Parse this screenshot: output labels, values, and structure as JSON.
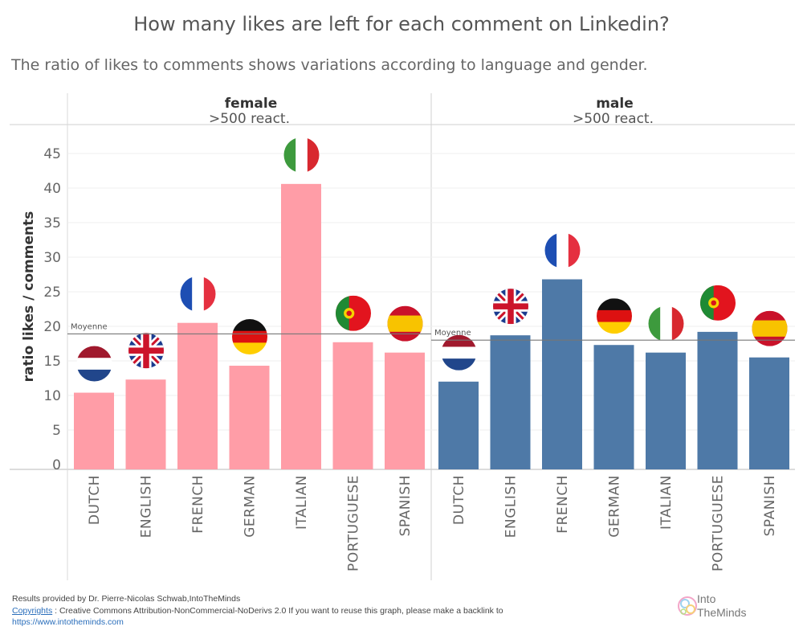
{
  "title": "How many likes are left for each comment on Linkedin?",
  "subtitle": "The ratio of likes to comments shows variations according to language and gender.",
  "footer": {
    "line1": "Results provided by Dr. Pierre-Nicolas Schwab,IntoTheMinds",
    "copyright_label": "Copyrights",
    "line2_rest": " : Creative Commons Attribution-NonCommercial-NoDerivs 2.0 If you want to reuse this graph, please make a backlink to",
    "link": "https://www.intotheminds.com"
  },
  "logo": {
    "line1": "Into",
    "line2": "TheMinds"
  },
  "chart_data": {
    "type": "bar",
    "ylabel": "ratio likes / comments",
    "yticks": [
      0,
      5,
      10,
      15,
      20,
      25,
      30,
      35,
      40,
      45
    ],
    "categories": [
      "DUTCH",
      "ENGLISH",
      "FRENCH",
      "GERMAN",
      "ITALIAN",
      "PORTUGUESE",
      "SPANISH"
    ],
    "average_label": "Moyenne",
    "panels": [
      {
        "name": "female",
        "sublabel": ">500 react.",
        "color": "#ff9da7",
        "values": [
          10.4,
          12.3,
          20.5,
          14.3,
          40.6,
          17.7,
          16.2
        ],
        "average": 18.9
      },
      {
        "name": "male",
        "sublabel": ">500 react.",
        "color": "#4e79a7",
        "values": [
          12.0,
          18.7,
          26.8,
          17.3,
          16.2,
          19.2,
          15.5
        ],
        "average": 18.0
      }
    ],
    "flags": {
      "DUTCH": "netherlands-flag-icon",
      "ENGLISH": "united-kingdom-flag-icon",
      "FRENCH": "france-flag-icon",
      "GERMAN": "germany-flag-icon",
      "ITALIAN": "italy-flag-icon",
      "PORTUGUESE": "portugal-flag-icon",
      "SPANISH": "spain-flag-icon"
    }
  }
}
